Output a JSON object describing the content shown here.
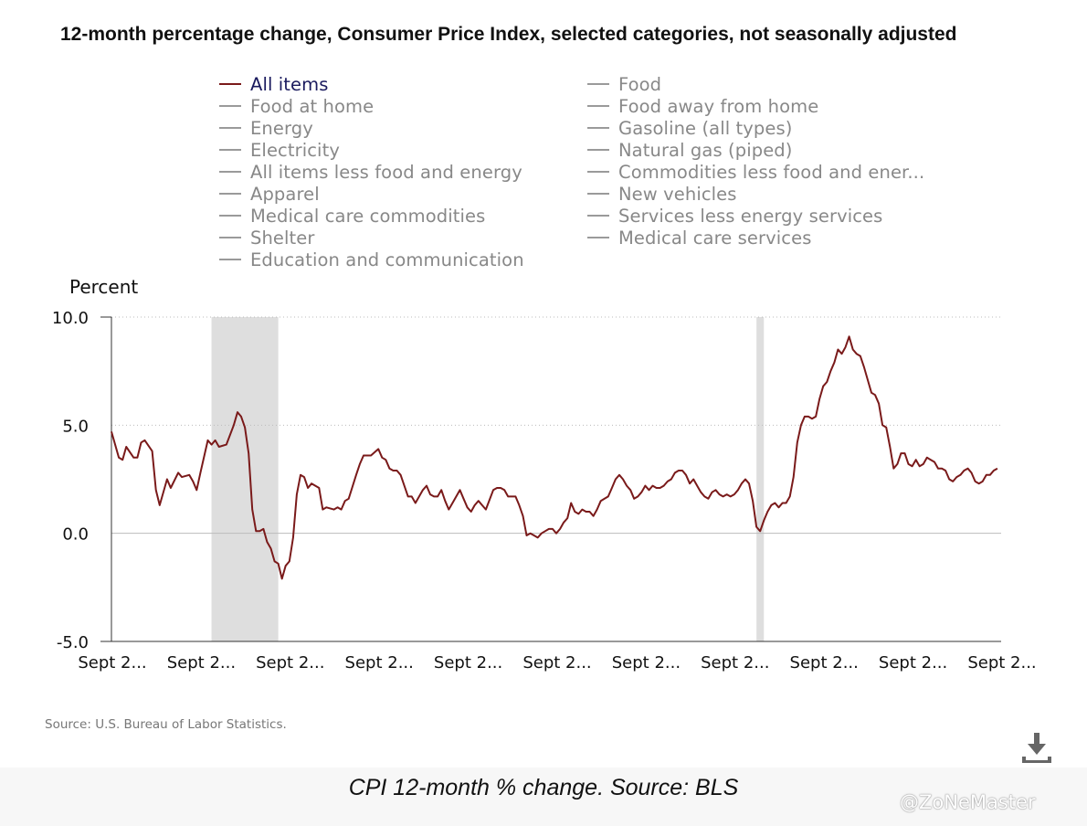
{
  "title": "12-month percentage change, Consumer Price Index, selected categories, not seasonally adjusted",
  "legend": {
    "left": [
      "All items",
      "Food at home",
      "Energy",
      "Electricity",
      "All items less food and energy",
      "Apparel",
      "Medical care commodities",
      "Shelter",
      "Education and communication"
    ],
    "right": [
      "Food",
      "Food away from home",
      "Gasoline (all types)",
      "Natural gas (piped)",
      "Commodities less food and ener...",
      "New vehicles",
      "Services less energy services",
      "Medical care services"
    ]
  },
  "colors": {
    "series": "#7a1a1a",
    "inactive": "#9a9a9a",
    "recession": "#dedede",
    "grid": "#bbbbbb"
  },
  "chart_data": {
    "type": "line",
    "ylabel": "Percent",
    "ylim": [
      -5,
      10
    ],
    "yticks": [
      10,
      5,
      0,
      -5
    ],
    "ytick_labels": [
      "10.0",
      "5.0",
      "0.0",
      "-5.0"
    ],
    "xtick_labels": [
      "Sept 2...",
      "Sept 2...",
      "Sept 2...",
      "Sept 2...",
      "Sept 2...",
      "Sept 2...",
      "Sept 2...",
      "Sept 2...",
      "Sept 2...",
      "Sept 2...",
      "Sept 2..."
    ],
    "x_index_range": [
      0,
      240
    ],
    "xtick_indices": [
      0,
      24,
      48,
      72,
      96,
      120,
      144,
      168,
      192,
      216,
      240
    ],
    "recessions": [
      [
        27,
        45
      ],
      [
        174,
        176
      ]
    ],
    "series": [
      {
        "name": "All items",
        "points": [
          [
            0,
            4.7
          ],
          [
            2,
            3.5
          ],
          [
            3,
            3.4
          ],
          [
            4,
            4.0
          ],
          [
            6,
            3.5
          ],
          [
            7,
            3.5
          ],
          [
            8,
            4.2
          ],
          [
            9,
            4.3
          ],
          [
            11,
            3.8
          ],
          [
            12,
            2.0
          ],
          [
            13,
            1.3
          ],
          [
            15,
            2.5
          ],
          [
            16,
            2.1
          ],
          [
            18,
            2.8
          ],
          [
            19,
            2.6
          ],
          [
            21,
            2.7
          ],
          [
            22,
            2.4
          ],
          [
            23,
            2.0
          ],
          [
            24,
            2.8
          ],
          [
            26,
            4.3
          ],
          [
            27,
            4.1
          ],
          [
            28,
            4.3
          ],
          [
            29,
            4.0
          ],
          [
            31,
            4.1
          ],
          [
            33,
            5.0
          ],
          [
            34,
            5.6
          ],
          [
            35,
            5.4
          ],
          [
            36,
            4.9
          ],
          [
            37,
            3.7
          ],
          [
            38,
            1.1
          ],
          [
            39,
            0.1
          ],
          [
            40,
            0.1
          ],
          [
            41,
            0.2
          ],
          [
            42,
            -0.4
          ],
          [
            43,
            -0.7
          ],
          [
            44,
            -1.3
          ],
          [
            45,
            -1.4
          ],
          [
            46,
            -2.1
          ],
          [
            47,
            -1.5
          ],
          [
            48,
            -1.3
          ],
          [
            49,
            -0.2
          ],
          [
            50,
            1.8
          ],
          [
            51,
            2.7
          ],
          [
            52,
            2.6
          ],
          [
            53,
            2.1
          ],
          [
            54,
            2.3
          ],
          [
            56,
            2.1
          ],
          [
            57,
            1.1
          ],
          [
            58,
            1.2
          ],
          [
            60,
            1.1
          ],
          [
            61,
            1.2
          ],
          [
            62,
            1.1
          ],
          [
            63,
            1.5
          ],
          [
            64,
            1.6
          ],
          [
            66,
            2.7
          ],
          [
            67,
            3.2
          ],
          [
            68,
            3.6
          ],
          [
            70,
            3.6
          ],
          [
            72,
            3.9
          ],
          [
            73,
            3.5
          ],
          [
            74,
            3.4
          ],
          [
            75,
            3.0
          ],
          [
            76,
            2.9
          ],
          [
            77,
            2.9
          ],
          [
            78,
            2.7
          ],
          [
            80,
            1.7
          ],
          [
            81,
            1.7
          ],
          [
            82,
            1.4
          ],
          [
            84,
            2.0
          ],
          [
            85,
            2.2
          ],
          [
            86,
            1.8
          ],
          [
            87,
            1.7
          ],
          [
            88,
            1.7
          ],
          [
            89,
            2.0
          ],
          [
            90,
            1.5
          ],
          [
            91,
            1.1
          ],
          [
            92,
            1.4
          ],
          [
            94,
            2.0
          ],
          [
            95,
            1.6
          ],
          [
            96,
            1.2
          ],
          [
            97,
            1.0
          ],
          [
            98,
            1.3
          ],
          [
            99,
            1.5
          ],
          [
            100,
            1.3
          ],
          [
            101,
            1.1
          ],
          [
            103,
            2.0
          ],
          [
            104,
            2.1
          ],
          [
            105,
            2.1
          ],
          [
            106,
            2.0
          ],
          [
            107,
            1.7
          ],
          [
            108,
            1.7
          ],
          [
            109,
            1.7
          ],
          [
            110,
            1.3
          ],
          [
            111,
            0.8
          ],
          [
            112,
            -0.1
          ],
          [
            113,
            0.0
          ],
          [
            114,
            -0.1
          ],
          [
            115,
            -0.2
          ],
          [
            116,
            0.0
          ],
          [
            117,
            0.1
          ],
          [
            118,
            0.2
          ],
          [
            119,
            0.2
          ],
          [
            120,
            0.0
          ],
          [
            121,
            0.2
          ],
          [
            122,
            0.5
          ],
          [
            123,
            0.7
          ],
          [
            124,
            1.4
          ],
          [
            125,
            1.0
          ],
          [
            126,
            0.9
          ],
          [
            127,
            1.1
          ],
          [
            128,
            1.0
          ],
          [
            129,
            1.0
          ],
          [
            130,
            0.8
          ],
          [
            131,
            1.1
          ],
          [
            132,
            1.5
          ],
          [
            133,
            1.6
          ],
          [
            134,
            1.7
          ],
          [
            135,
            2.1
          ],
          [
            136,
            2.5
          ],
          [
            137,
            2.7
          ],
          [
            138,
            2.5
          ],
          [
            139,
            2.2
          ],
          [
            140,
            2.0
          ],
          [
            141,
            1.6
          ],
          [
            142,
            1.7
          ],
          [
            143,
            1.9
          ],
          [
            144,
            2.2
          ],
          [
            145,
            2.0
          ],
          [
            146,
            2.2
          ],
          [
            147,
            2.1
          ],
          [
            148,
            2.1
          ],
          [
            149,
            2.2
          ],
          [
            150,
            2.4
          ],
          [
            151,
            2.5
          ],
          [
            152,
            2.8
          ],
          [
            153,
            2.9
          ],
          [
            154,
            2.9
          ],
          [
            155,
            2.7
          ],
          [
            156,
            2.3
          ],
          [
            157,
            2.5
          ],
          [
            158,
            2.2
          ],
          [
            159,
            1.9
          ],
          [
            160,
            1.7
          ],
          [
            161,
            1.6
          ],
          [
            162,
            1.9
          ],
          [
            163,
            2.0
          ],
          [
            164,
            1.8
          ],
          [
            165,
            1.7
          ],
          [
            166,
            1.8
          ],
          [
            167,
            1.7
          ],
          [
            168,
            1.8
          ],
          [
            169,
            2.0
          ],
          [
            170,
            2.3
          ],
          [
            171,
            2.5
          ],
          [
            172,
            2.3
          ],
          [
            173,
            1.5
          ],
          [
            174,
            0.3
          ],
          [
            175,
            0.1
          ],
          [
            176,
            0.6
          ],
          [
            177,
            1.0
          ],
          [
            178,
            1.3
          ],
          [
            179,
            1.4
          ],
          [
            180,
            1.2
          ],
          [
            181,
            1.4
          ],
          [
            182,
            1.4
          ],
          [
            183,
            1.7
          ],
          [
            184,
            2.6
          ],
          [
            185,
            4.2
          ],
          [
            186,
            5.0
          ],
          [
            187,
            5.4
          ],
          [
            188,
            5.4
          ],
          [
            189,
            5.3
          ],
          [
            190,
            5.4
          ],
          [
            191,
            6.2
          ],
          [
            192,
            6.8
          ],
          [
            193,
            7.0
          ],
          [
            194,
            7.5
          ],
          [
            195,
            7.9
          ],
          [
            196,
            8.5
          ],
          [
            197,
            8.3
          ],
          [
            198,
            8.6
          ],
          [
            199,
            9.1
          ],
          [
            200,
            8.5
          ],
          [
            201,
            8.3
          ],
          [
            202,
            8.2
          ],
          [
            203,
            7.7
          ],
          [
            204,
            7.1
          ],
          [
            205,
            6.5
          ],
          [
            206,
            6.4
          ],
          [
            207,
            6.0
          ],
          [
            208,
            5.0
          ],
          [
            209,
            4.9
          ],
          [
            210,
            4.0
          ],
          [
            211,
            3.0
          ],
          [
            212,
            3.2
          ],
          [
            213,
            3.7
          ],
          [
            214,
            3.7
          ],
          [
            215,
            3.2
          ],
          [
            216,
            3.1
          ],
          [
            217,
            3.4
          ],
          [
            218,
            3.1
          ],
          [
            219,
            3.2
          ],
          [
            220,
            3.5
          ],
          [
            221,
            3.4
          ],
          [
            222,
            3.3
          ],
          [
            223,
            3.0
          ],
          [
            224,
            3.0
          ],
          [
            225,
            2.9
          ],
          [
            226,
            2.5
          ],
          [
            227,
            2.4
          ],
          [
            228,
            2.6
          ],
          [
            229,
            2.7
          ],
          [
            230,
            2.9
          ],
          [
            231,
            3.0
          ],
          [
            232,
            2.8
          ],
          [
            233,
            2.4
          ],
          [
            234,
            2.3
          ],
          [
            235,
            2.4
          ],
          [
            236,
            2.7
          ],
          [
            237,
            2.7
          ],
          [
            238,
            2.9
          ],
          [
            239,
            3.0
          ]
        ]
      }
    ]
  },
  "source": "Source: U.S. Bureau of Labor Statistics.",
  "download_icon": "download-icon",
  "caption": "CPI 12-month % change. Source: BLS",
  "watermark": "@ZoNeMaster"
}
